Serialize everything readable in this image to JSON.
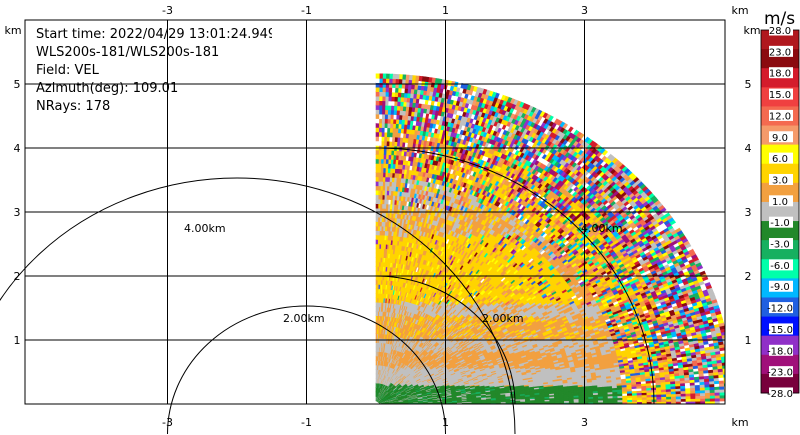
{
  "info": {
    "start_time": "Start time: 2022/04/29 13:01:24.949",
    "instrument": "WLS200s-181/WLS200s-181",
    "field": "Field: VEL",
    "azimuth": "Azimuth(deg): 109.01",
    "nrays": "NRays: 178"
  },
  "axes": {
    "x_ticks": [
      "-3",
      "-1",
      "1",
      "3"
    ],
    "y_ticks": [
      "1",
      "2",
      "3",
      "4",
      "5"
    ],
    "unit": "km"
  },
  "range_rings": [
    "2.00km",
    "4.00km"
  ],
  "colorbar": {
    "title": "m/s",
    "labels": [
      "28.0",
      "23.0",
      "18.0",
      "15.0",
      "12.0",
      "9.0",
      "6.0",
      "3.0",
      "1.0",
      "-1.0",
      "-3.0",
      "-6.0",
      "-9.0",
      "-12.0",
      "-15.0",
      "-18.0",
      "-23.0",
      "-28.0"
    ],
    "colors": [
      "#b0181e",
      "#8b0a0f",
      "#d41c2c",
      "#f04040",
      "#f46a50",
      "#f59a6a",
      "#ffff00",
      "#ffd400",
      "#f2a040",
      "#c0c0c0",
      "#22882a",
      "#16b060",
      "#00ffaa",
      "#00b8ff",
      "#2060e0",
      "#0010ff",
      "#9030c8",
      "#a0107a",
      "#78003c"
    ]
  }
}
